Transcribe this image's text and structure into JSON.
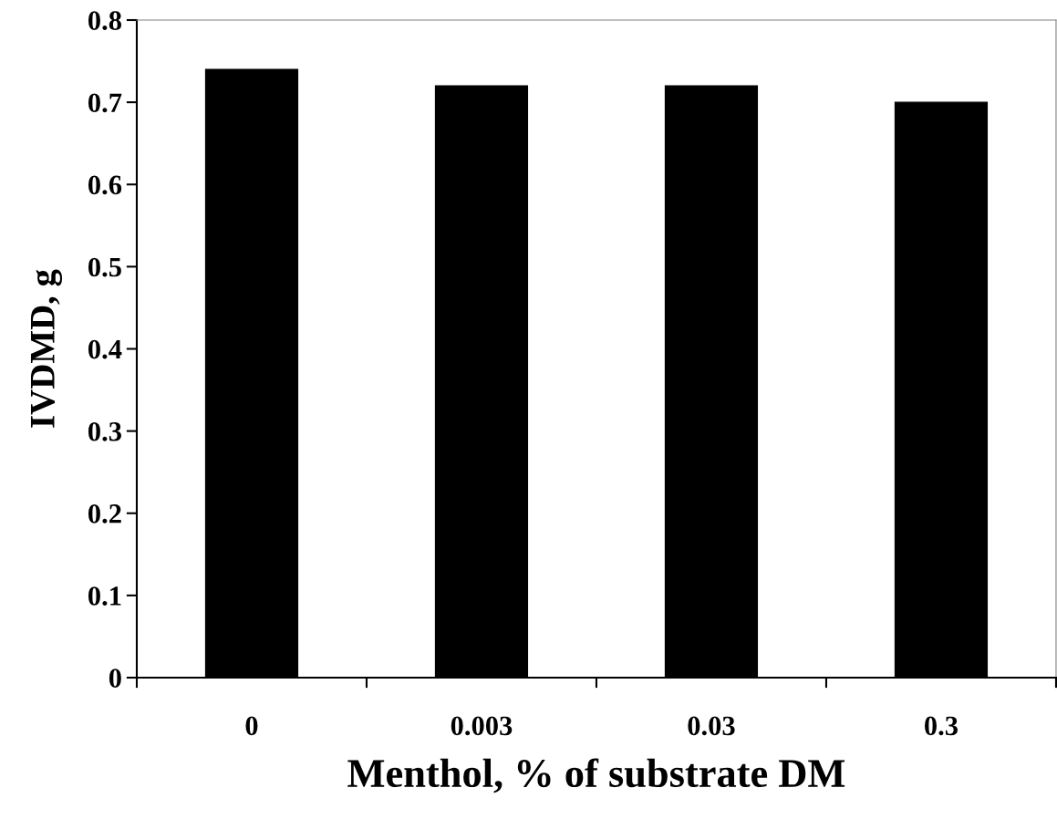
{
  "chart_data": {
    "type": "bar",
    "xlabel": "Menthol, % of substrate DM",
    "ylabel": "IVDMD, g",
    "categories": [
      "0",
      "0.003",
      "0.03",
      "0.3"
    ],
    "values": [
      0.74,
      0.72,
      0.72,
      0.7
    ],
    "color": "#000000",
    "ylim": [
      0,
      0.8
    ],
    "yticks": [
      0,
      0.1,
      0.2,
      0.3,
      0.4,
      0.5,
      0.6,
      0.7,
      0.8
    ],
    "grid": false
  }
}
